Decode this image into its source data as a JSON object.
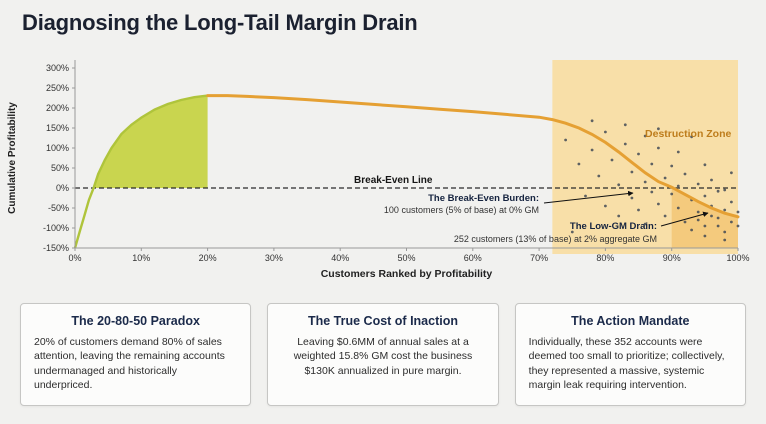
{
  "page": {
    "title": "Diagnosing the Long-Tail Margin Drain"
  },
  "chart_data": {
    "type": "area",
    "title": "",
    "xlabel": "Customers Ranked by Profitability",
    "ylabel": "Cumulative Profitability",
    "xlim": [
      0,
      100
    ],
    "ylim": [
      -150,
      300
    ],
    "x_ticks": [
      0,
      10,
      20,
      30,
      40,
      50,
      60,
      70,
      80,
      90,
      100
    ],
    "y_ticks": [
      300,
      250,
      200,
      150,
      100,
      50,
      0,
      -50,
      -100,
      -150
    ],
    "tick_suffix": "%",
    "break_even_label": "Break-Even Line",
    "curve": [
      [
        0,
        -150
      ],
      [
        0.7,
        -110
      ],
      [
        1.4,
        -70
      ],
      [
        2.1,
        -30
      ],
      [
        2.8,
        0
      ],
      [
        3.5,
        35
      ],
      [
        4.5,
        70
      ],
      [
        5.5,
        100
      ],
      [
        7,
        135
      ],
      [
        8.5,
        158
      ],
      [
        10,
        176
      ],
      [
        12,
        196
      ],
      [
        14,
        210
      ],
      [
        16,
        220
      ],
      [
        18,
        227
      ],
      [
        20,
        231
      ],
      [
        23,
        231
      ],
      [
        26,
        229
      ],
      [
        30,
        226
      ],
      [
        35,
        221
      ],
      [
        40,
        215
      ],
      [
        45,
        209
      ],
      [
        50,
        203
      ],
      [
        55,
        197
      ],
      [
        60,
        191
      ],
      [
        65,
        184
      ],
      [
        70,
        177
      ],
      [
        72,
        171
      ],
      [
        74,
        162
      ],
      [
        76,
        150
      ],
      [
        78,
        134
      ],
      [
        80,
        114
      ],
      [
        82,
        90
      ],
      [
        84,
        64
      ],
      [
        86,
        38
      ],
      [
        88,
        16
      ],
      [
        90,
        2
      ],
      [
        92,
        -16
      ],
      [
        94,
        -34
      ],
      [
        96,
        -50
      ],
      [
        98,
        -63
      ],
      [
        100,
        -72
      ]
    ],
    "green_fill_range": [
      2.8,
      20
    ],
    "destruction_zone": {
      "label": "Destruction Zone",
      "x_start": 72,
      "x_end": 100
    },
    "scatter": [
      [
        74,
        120
      ],
      [
        75,
        -110
      ],
      [
        76,
        60
      ],
      [
        77,
        -20
      ],
      [
        78,
        95
      ],
      [
        78,
        168
      ],
      [
        79,
        30
      ],
      [
        80,
        -45
      ],
      [
        80,
        140
      ],
      [
        81,
        70
      ],
      [
        82,
        8
      ],
      [
        82,
        -70
      ],
      [
        83,
        110
      ],
      [
        83,
        158
      ],
      [
        84,
        40
      ],
      [
        84,
        -25
      ],
      [
        85,
        85
      ],
      [
        85,
        -55
      ],
      [
        86,
        15
      ],
      [
        86,
        -90
      ],
      [
        86,
        130
      ],
      [
        87,
        60
      ],
      [
        87,
        -10
      ],
      [
        88,
        100
      ],
      [
        88,
        -40
      ],
      [
        88,
        148
      ],
      [
        89,
        25
      ],
      [
        89,
        -70
      ],
      [
        90,
        -15
      ],
      [
        90,
        55
      ],
      [
        91,
        -50
      ],
      [
        91,
        5
      ],
      [
        91,
        90
      ],
      [
        92,
        -85
      ],
      [
        92,
        35
      ],
      [
        93,
        -30
      ],
      [
        93,
        -105
      ],
      [
        93,
        128
      ],
      [
        94,
        10
      ],
      [
        94,
        -60
      ],
      [
        94,
        -80
      ],
      [
        95,
        -20
      ],
      [
        95,
        -95
      ],
      [
        95,
        58
      ],
      [
        95,
        -120
      ],
      [
        96,
        -45
      ],
      [
        96,
        20
      ],
      [
        96,
        -70
      ],
      [
        97,
        -75
      ],
      [
        97,
        -8
      ],
      [
        97,
        -95
      ],
      [
        98,
        -55
      ],
      [
        98,
        -110
      ],
      [
        98,
        -5
      ],
      [
        98,
        -130
      ],
      [
        99,
        -35
      ],
      [
        99,
        -85
      ],
      [
        99,
        38
      ],
      [
        100,
        -60
      ],
      [
        100,
        -95
      ]
    ],
    "annotations": {
      "break_even_burden": {
        "title": "The Break-Even Burden:",
        "text": "100 customers (5% of base) at 0% GM"
      },
      "low_gm_drain": {
        "title": "The Low-GM Drain:",
        "text": "252 customers (13% of base) at 2% aggregate GM"
      }
    },
    "colors": {
      "curve": "#E5A033",
      "green_fill": "#C9D54F",
      "green_edge": "#AFC43B",
      "zone_fill": "#F8DFA8",
      "zone_label": "#BE7D1C",
      "loss_fill": "#EFB24A",
      "dot": "#3D4653",
      "background": "#F1F1EF"
    }
  },
  "cards": [
    {
      "title": "The 20-80-50 Paradox",
      "body": "20% of customers demand 80% of sales attention, leaving the remaining accounts undermanaged and historically underpriced."
    },
    {
      "title": "The True Cost of Inaction",
      "body": "Leaving $0.6MM of annual sales at a weighted 15.8% GM cost the business $130K annualized in pure margin."
    },
    {
      "title": "The Action Mandate",
      "body": "Individually, these 352 accounts were deemed too small to prioritize; collectively, they represented a massive, systemic margin leak requiring intervention."
    }
  ]
}
